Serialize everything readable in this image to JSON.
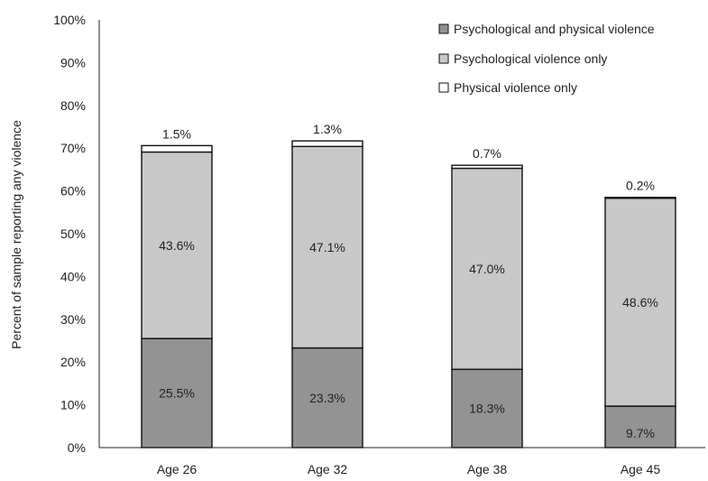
{
  "chart_data": {
    "type": "bar",
    "stacked": true,
    "title": "",
    "xlabel": "",
    "ylabel": "Percent of sample reporting any violence",
    "ylim": [
      0,
      100
    ],
    "ytick_step": 10,
    "ytick_labels": [
      "0%",
      "10%",
      "20%",
      "30%",
      "40%",
      "50%",
      "60%",
      "70%",
      "80%",
      "90%",
      "100%"
    ],
    "categories": [
      "Age 26",
      "Age 32",
      "Age 38",
      "Age 45"
    ],
    "grid": false,
    "legend_position": "top-right",
    "series": [
      {
        "name": "Psychological and physical violence",
        "values": [
          25.5,
          23.3,
          18.3,
          9.7
        ],
        "labels": [
          "25.5%",
          "23.3%",
          "18.3%",
          "9.7%"
        ],
        "color": "#939393"
      },
      {
        "name": "Psychological violence only",
        "values": [
          43.6,
          47.1,
          47.0,
          48.6
        ],
        "labels": [
          "43.6%",
          "47.1%",
          "47.0%",
          "48.6%"
        ],
        "color": "#c8c8c8"
      },
      {
        "name": "Physical violence only",
        "values": [
          1.5,
          1.3,
          0.7,
          0.2
        ],
        "labels": [
          "1.5%",
          "1.3%",
          "0.7%",
          "0.2%"
        ],
        "color": "#ffffff"
      }
    ]
  }
}
